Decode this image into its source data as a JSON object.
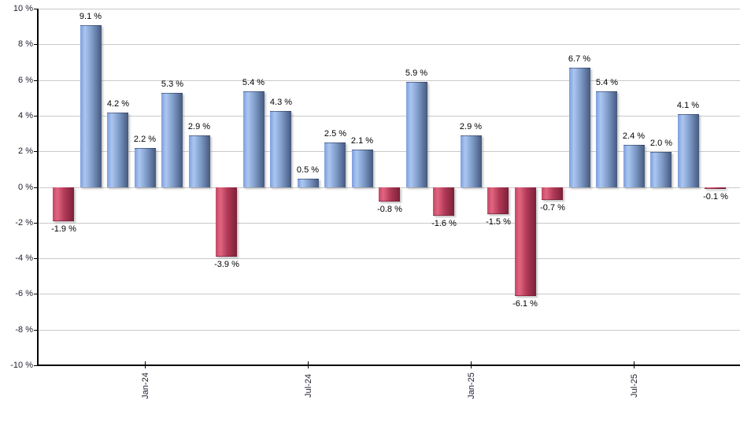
{
  "chart_data": {
    "type": "bar",
    "title": "",
    "unit": "%",
    "ylim": [
      -10,
      10
    ],
    "ytick_step": 2,
    "grid": true,
    "legend": false,
    "y_tick_labels": [
      "10 %",
      "8 %",
      "6 %",
      "4 %",
      "2 %",
      "0 %",
      "-2 %",
      "-4 %",
      "-6 %",
      "-8 %",
      "-10 %"
    ],
    "x_tick_labels": [
      "Jan-24",
      "Jul-24",
      "Jan-25",
      "Jul-25"
    ],
    "x_tick_bar_indices": [
      3,
      9,
      15,
      21
    ],
    "values": [
      -1.9,
      9.1,
      4.2,
      2.2,
      5.3,
      2.9,
      -3.9,
      5.4,
      4.3,
      0.5,
      2.5,
      2.1,
      -0.8,
      5.9,
      -1.6,
      2.9,
      -1.5,
      -6.1,
      -0.7,
      6.7,
      5.4,
      2.4,
      2.0,
      4.1,
      -0.1
    ],
    "bar_labels": [
      "-1.9 %",
      "9.1 %",
      "4.2 %",
      "2.2 %",
      "5.3 %",
      "2.9 %",
      "-3.9 %",
      "5.4 %",
      "4.3 %",
      "0.5 %",
      "2.5 %",
      "2.1 %",
      "-0.8 %",
      "5.9 %",
      "-1.6 %",
      "2.9 %",
      "-1.5 %",
      "-6.1 %",
      "-0.7 %",
      "6.7 %",
      "5.4 %",
      "2.4 %",
      "2.0 %",
      "4.1 %",
      "-0.1 %"
    ]
  },
  "colors": {
    "positive_bar_edge": "#7d9fdd",
    "positive_bar_light": "#abc6f1",
    "positive_bar_mid": "#7f9cc9",
    "positive_bar_dark": "#45597f",
    "negative_bar_edge": "#c14a66",
    "negative_bar_light": "#e26580",
    "negative_bar_mid": "#b13a58",
    "negative_bar_dark": "#7c2038",
    "gridline": "#c9c9c9",
    "axis": "#000000",
    "background": "#ffffff",
    "value_label_text": "#000000",
    "axis_label_text": "#222233"
  }
}
